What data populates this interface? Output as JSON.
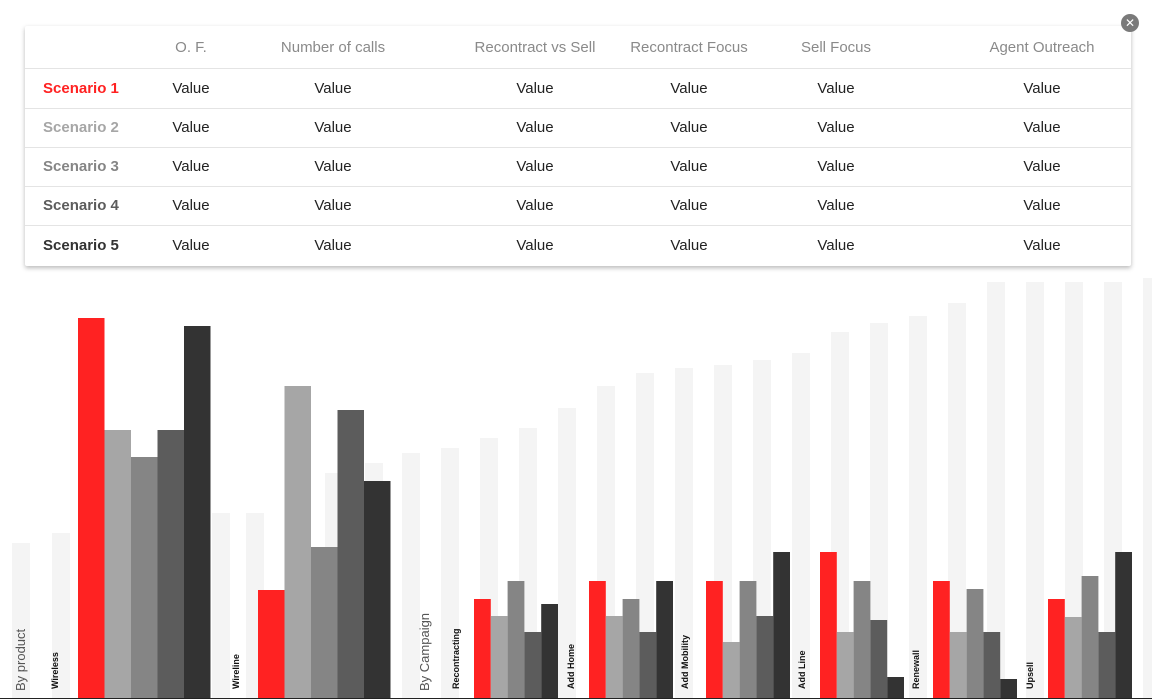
{
  "table": {
    "columns": [
      "O. F.",
      "Number of calls",
      "Recontract vs  Sell",
      "Recontract Focus",
      "Sell Focus",
      "Agent Outreach"
    ],
    "rows": [
      {
        "name": "Scenario 1",
        "color": "#ff2222",
        "values": [
          "Value",
          "Value",
          "Value",
          "Value",
          "Value",
          "Value"
        ]
      },
      {
        "name": "Scenario 2",
        "color": "#a6a6a6",
        "values": [
          "Value",
          "Value",
          "Value",
          "Value",
          "Value",
          "Value"
        ]
      },
      {
        "name": "Scenario 3",
        "color": "#858585",
        "values": [
          "Value",
          "Value",
          "Value",
          "Value",
          "Value",
          "Value"
        ]
      },
      {
        "name": "Scenario 4",
        "color": "#5c5c5c",
        "values": [
          "Value",
          "Value",
          "Value",
          "Value",
          "Value",
          "Value"
        ]
      },
      {
        "name": "Scenario 5",
        "color": "#333333",
        "values": [
          "Value",
          "Value",
          "Value",
          "Value",
          "Value",
          "Value"
        ]
      }
    ]
  },
  "close_icon": "close-circle-icon",
  "chart_data": {
    "type": "bar",
    "groups": [
      {
        "section": "By product",
        "categories": [
          "Wireless",
          "Wireline"
        ]
      },
      {
        "section": "By Campaign",
        "categories": [
          "Recontracting",
          "Add Home",
          "Add Mobility",
          "Add Line",
          "Renewall",
          "Upsell"
        ]
      }
    ],
    "series": [
      {
        "name": "Scenario 1",
        "color": "#ff2222",
        "values": [
          380,
          108,
          99,
          117,
          117,
          146,
          117,
          99
        ]
      },
      {
        "name": "Scenario 2",
        "color": "#a6a6a6",
        "values": [
          268,
          312,
          82,
          82,
          56,
          66,
          66,
          81
        ]
      },
      {
        "name": "Scenario 3",
        "color": "#858585",
        "values": [
          241,
          151,
          117,
          99,
          117,
          117,
          109,
          122
        ]
      },
      {
        "name": "Scenario 4",
        "color": "#5c5c5c",
        "values": [
          268,
          288,
          66,
          66,
          82,
          78,
          66,
          66
        ]
      },
      {
        "name": "Scenario 5",
        "color": "#333333",
        "values": [
          372,
          217,
          94,
          117,
          146,
          21,
          19,
          146
        ]
      }
    ],
    "background_bars": [
      155,
      165,
      185,
      185,
      225,
      235,
      245,
      250,
      260,
      270,
      290,
      312,
      325,
      330,
      333,
      338,
      345,
      366,
      375,
      382,
      395,
      416,
      416,
      416,
      416,
      420,
      420
    ]
  }
}
